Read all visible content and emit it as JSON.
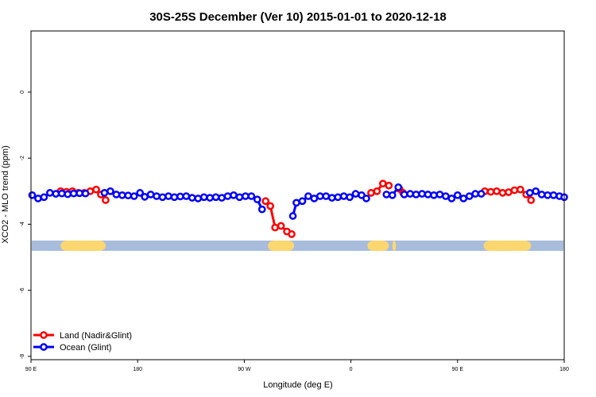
{
  "chart_data": {
    "type": "line",
    "title": "30S-25S December (Ver 10)   2015-01-01 to 2020-12-18",
    "xlabel": "Longitude (deg E)",
    "ylabel": "XCO2 - MLO trend (ppm)",
    "x_axis": {
      "ticks": [
        {
          "value": 90,
          "label": "90 E"
        },
        {
          "value": 180,
          "label": "180"
        },
        {
          "value": 270,
          "label": "90 W"
        },
        {
          "value": 360,
          "label": "0"
        },
        {
          "value": 450,
          "label": "90 E"
        },
        {
          "value": 540,
          "label": "180"
        }
      ],
      "range": [
        90,
        540
      ]
    },
    "y_axis": {
      "ticks": [
        0,
        -2,
        -4,
        -6,
        -8
      ],
      "range": [
        -8.1,
        1.85
      ]
    },
    "land_strip": {
      "y": -4.65,
      "ocean_color": "#a8bcdc",
      "land_color": "#fcd770",
      "land_segments": [
        [
          115,
          153
        ],
        [
          290,
          312
        ],
        [
          374,
          392
        ],
        [
          395,
          398
        ],
        [
          472,
          512
        ]
      ]
    },
    "legend_position": "bottom-left",
    "series": [
      {
        "name": "Land (Nadir&Glint)",
        "color": "#ff0000",
        "segments": [
          [
            [
              115,
              -3.0
            ],
            [
              120,
              -3.02
            ],
            [
              125,
              -3.0
            ],
            [
              130,
              -3.05
            ],
            [
              135,
              -3.05
            ],
            [
              140,
              -3.0
            ],
            [
              145,
              -2.95
            ],
            [
              149,
              -3.1
            ],
            [
              153,
              -3.27
            ]
          ],
          [
            [
              288,
              -3.3
            ],
            [
              292,
              -3.45
            ],
            [
              296,
              -4.1
            ],
            [
              301,
              -4.05
            ],
            [
              306,
              -4.22
            ],
            [
              310,
              -4.3
            ]
          ],
          [
            [
              377,
              -3.05
            ],
            [
              382,
              -3.0
            ],
            [
              387,
              -2.77
            ],
            [
              392,
              -2.83
            ]
          ],
          [
            [
              401,
              -2.93
            ],
            [
              404,
              -3.05
            ]
          ],
          [
            [
              473,
              -3.0
            ],
            [
              478,
              -3.02
            ],
            [
              483,
              -3.0
            ],
            [
              488,
              -3.05
            ],
            [
              493,
              -3.03
            ],
            [
              498,
              -2.97
            ],
            [
              503,
              -2.95
            ],
            [
              508,
              -3.1
            ],
            [
              512,
              -3.27
            ]
          ]
        ]
      },
      {
        "name": "Ocean (Glint)",
        "color": "#0000ff",
        "segments": [
          [
            [
              91,
              -3.12
            ],
            [
              96,
              -3.22
            ],
            [
              101,
              -3.18
            ],
            [
              106,
              -3.05
            ],
            [
              111,
              -3.08
            ],
            [
              116,
              -3.07
            ],
            [
              121,
              -3.09
            ],
            [
              126,
              -3.07
            ],
            [
              131,
              -3.06
            ],
            [
              136,
              -3.07
            ]
          ],
          [
            [
              152,
              -3.05
            ],
            [
              157,
              -3.0
            ],
            [
              162,
              -3.1
            ],
            [
              167,
              -3.12
            ],
            [
              172,
              -3.13
            ],
            [
              177,
              -3.15
            ],
            [
              182,
              -3.05
            ],
            [
              186,
              -3.17
            ],
            [
              191,
              -3.1
            ],
            [
              196,
              -3.15
            ],
            [
              201,
              -3.18
            ],
            [
              206,
              -3.15
            ],
            [
              211,
              -3.18
            ],
            [
              216,
              -3.16
            ],
            [
              221,
              -3.15
            ],
            [
              226,
              -3.2
            ],
            [
              231,
              -3.22
            ],
            [
              236,
              -3.18
            ],
            [
              241,
              -3.2
            ],
            [
              246,
              -3.18
            ],
            [
              251,
              -3.2
            ],
            [
              256,
              -3.15
            ],
            [
              261,
              -3.12
            ],
            [
              266,
              -3.18
            ],
            [
              271,
              -3.15
            ],
            [
              276,
              -3.15
            ],
            [
              281,
              -3.25
            ],
            [
              285,
              -3.55
            ]
          ],
          [
            [
              311,
              -3.75
            ],
            [
              314,
              -3.35
            ],
            [
              319,
              -3.3
            ],
            [
              324,
              -3.15
            ],
            [
              329,
              -3.22
            ],
            [
              334,
              -3.15
            ],
            [
              339,
              -3.15
            ],
            [
              344,
              -3.2
            ],
            [
              349,
              -3.18
            ],
            [
              354,
              -3.15
            ],
            [
              359,
              -3.18
            ],
            [
              364,
              -3.08
            ],
            [
              369,
              -3.12
            ],
            [
              373,
              -3.22
            ]
          ],
          [
            [
              390,
              -3.1
            ],
            [
              395,
              -3.12
            ],
            [
              400,
              -2.88
            ],
            [
              405,
              -3.1
            ],
            [
              410,
              -3.08
            ],
            [
              415,
              -3.1
            ],
            [
              420,
              -3.08
            ],
            [
              425,
              -3.1
            ],
            [
              430,
              -3.12
            ],
            [
              435,
              -3.1
            ],
            [
              440,
              -3.15
            ],
            [
              445,
              -3.22
            ],
            [
              450,
              -3.12
            ],
            [
              455,
              -3.22
            ],
            [
              460,
              -3.15
            ],
            [
              465,
              -3.08
            ],
            [
              470,
              -3.08
            ]
          ],
          [
            [
              511,
              -3.05
            ],
            [
              516,
              -3.0
            ],
            [
              521,
              -3.1
            ],
            [
              526,
              -3.12
            ],
            [
              531,
              -3.12
            ],
            [
              536,
              -3.15
            ],
            [
              540,
              -3.18
            ]
          ]
        ]
      }
    ]
  }
}
